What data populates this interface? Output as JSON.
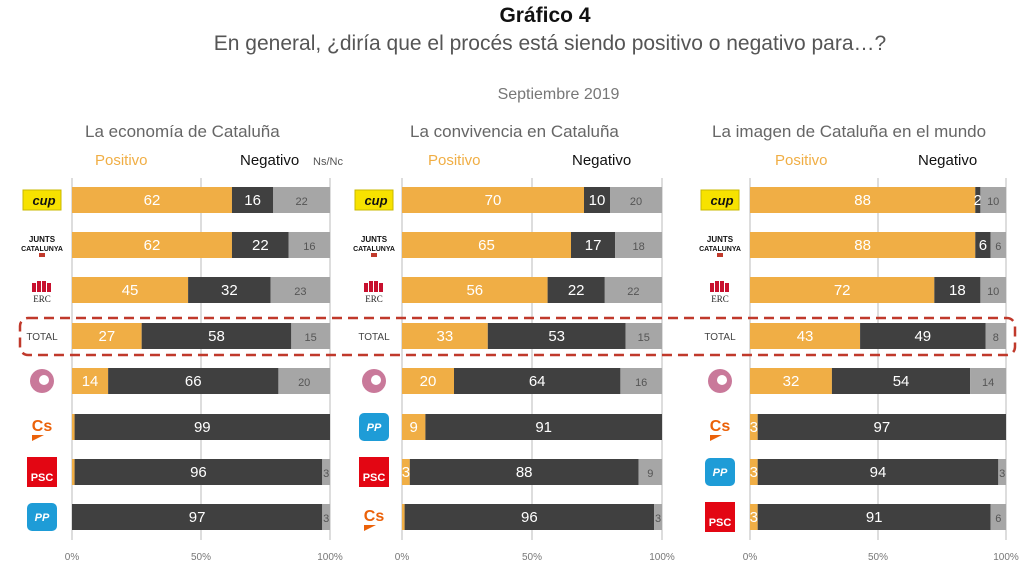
{
  "title": "Gráfico 4",
  "subtitle": "En general, ¿diría que el procés está siendo positivo o negativo para…?",
  "date_label": "Septiembre 2019",
  "colors": {
    "positivo": "#F0AE45",
    "negativo": "#404040",
    "nsnc": "#A6A6A6",
    "highlight": "#C0392B"
  },
  "chart_data": [
    {
      "type": "bar",
      "orientation": "horizontal",
      "stacked": true,
      "title": "La economía de Cataluña",
      "legend": [
        "Positivo",
        "Negativo",
        "Ns/Nc"
      ],
      "categories": [
        "CUP",
        "Junts per Catalunya",
        "ERC",
        "TOTAL",
        "Catalunya en Comú",
        "Cs",
        "PSC",
        "PP"
      ],
      "series": [
        {
          "name": "Positivo",
          "values": [
            62,
            62,
            45,
            27,
            14,
            1,
            1,
            0
          ]
        },
        {
          "name": "Negativo",
          "values": [
            16,
            22,
            32,
            58,
            66,
            99,
            96,
            97
          ]
        },
        {
          "name": "Ns/Nc",
          "values": [
            22,
            16,
            23,
            15,
            20,
            0,
            3,
            3
          ]
        }
      ],
      "xticks": [
        "0%",
        "50%",
        "100%"
      ],
      "xlim": [
        0,
        100
      ],
      "grid": true
    },
    {
      "type": "bar",
      "orientation": "horizontal",
      "stacked": true,
      "title": "La convivencia en Cataluña",
      "legend": [
        "Positivo",
        "Negativo"
      ],
      "categories": [
        "CUP",
        "Junts per Catalunya",
        "ERC",
        "TOTAL",
        "Catalunya en Comú",
        "PP",
        "PSC",
        "Cs"
      ],
      "series": [
        {
          "name": "Positivo",
          "values": [
            70,
            65,
            56,
            33,
            20,
            9,
            3,
            1
          ]
        },
        {
          "name": "Negativo",
          "values": [
            10,
            17,
            22,
            53,
            64,
            91,
            88,
            96
          ]
        },
        {
          "name": "Ns/Nc",
          "values": [
            20,
            18,
            22,
            15,
            16,
            0,
            9,
            3
          ]
        }
      ],
      "xticks": [
        "0%",
        "50%",
        "100%"
      ],
      "xlim": [
        0,
        100
      ],
      "grid": true
    },
    {
      "type": "bar",
      "orientation": "horizontal",
      "stacked": true,
      "title": "La imagen de Cataluña en el mundo",
      "legend": [
        "Positivo",
        "Negativo"
      ],
      "categories": [
        "CUP",
        "Junts per Catalunya",
        "ERC",
        "TOTAL",
        "Catalunya en Comú",
        "Cs",
        "PP",
        "PSC"
      ],
      "series": [
        {
          "name": "Positivo",
          "values": [
            88,
            88,
            72,
            43,
            32,
            3,
            3,
            3
          ]
        },
        {
          "name": "Negativo",
          "values": [
            2,
            6,
            18,
            49,
            54,
            97,
            94,
            91
          ]
        },
        {
          "name": "Ns/Nc",
          "values": [
            10,
            6,
            10,
            8,
            14,
            0,
            3,
            6
          ]
        }
      ],
      "xticks": [
        "0%",
        "50%",
        "100%"
      ],
      "xlim": [
        0,
        100
      ],
      "grid": true
    }
  ],
  "logo_text": {
    "CUP": "cup",
    "ERC": "ERC",
    "Cs": "Cs",
    "PSC": "PSC",
    "PP": "PP",
    "Junts per Catalunya": "JUNTS CATALUNYA",
    "TOTAL": "TOTAL"
  }
}
